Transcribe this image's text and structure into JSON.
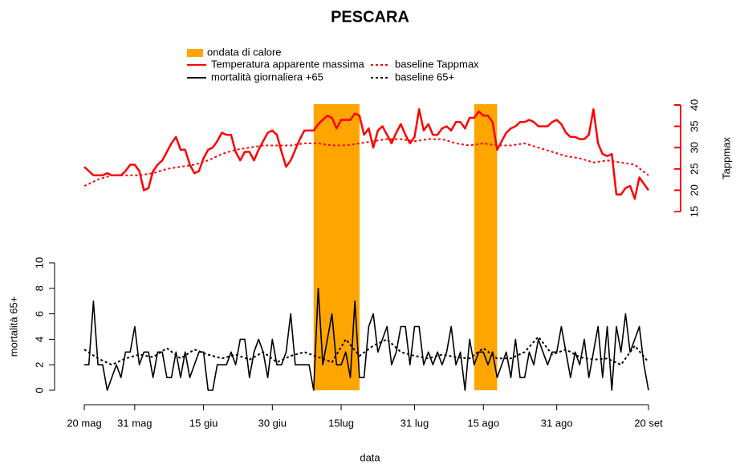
{
  "chart_data": [
    {
      "type": "line",
      "title": "PESCARA",
      "ylabel": "Tappmax",
      "y_axis_side": "right",
      "axis_color": "#ff0000",
      "ylim": [
        15,
        40
      ],
      "yticks": [
        15,
        20,
        25,
        30,
        35,
        40
      ],
      "xlim": [
        0,
        123
      ],
      "heatwaves": {
        "name": "ondata di calore",
        "color": "#ffa500",
        "ranges": [
          [
            50,
            60
          ],
          [
            85,
            90
          ]
        ]
      },
      "x": [
        0,
        1,
        2,
        3,
        4,
        5,
        6,
        7,
        8,
        9,
        10,
        11,
        12,
        13,
        14,
        15,
        16,
        17,
        18,
        19,
        20,
        21,
        22,
        23,
        24,
        25,
        26,
        27,
        28,
        29,
        30,
        31,
        32,
        33,
        34,
        35,
        36,
        37,
        38,
        39,
        40,
        41,
        42,
        43,
        44,
        45,
        46,
        47,
        48,
        49,
        50,
        51,
        52,
        53,
        54,
        55,
        56,
        57,
        58,
        59,
        60,
        61,
        62,
        63,
        64,
        65,
        66,
        67,
        68,
        69,
        70,
        71,
        72,
        73,
        74,
        75,
        76,
        77,
        78,
        79,
        80,
        81,
        82,
        83,
        84,
        85,
        86,
        87,
        88,
        89,
        90,
        91,
        92,
        93,
        94,
        95,
        96,
        97,
        98,
        99,
        100,
        101,
        102,
        103,
        104,
        105,
        106,
        107,
        108,
        109,
        110,
        111,
        112,
        113,
        114,
        115,
        116,
        117,
        118,
        119,
        120,
        121,
        122,
        123
      ],
      "series": [
        {
          "name": "Temperatura apparente massima",
          "color": "#ff0000",
          "linestyle": "solid",
          "values": [
            25.5,
            24.5,
            23.5,
            23.5,
            23.5,
            24,
            23.5,
            23.5,
            23.5,
            24.5,
            26,
            26,
            24.5,
            20,
            20.5,
            24.5,
            26,
            27,
            29,
            31,
            32.5,
            29.5,
            29.5,
            26,
            24,
            24.5,
            27.5,
            29.5,
            30,
            31.5,
            33.5,
            33,
            33,
            29,
            27,
            29,
            29,
            27,
            29.5,
            31.5,
            33.5,
            34,
            33,
            29,
            25.5,
            27,
            29.5,
            32,
            34,
            34,
            34,
            35.5,
            36.5,
            37.5,
            37,
            34.5,
            36.5,
            36.5,
            36.5,
            38,
            37.5,
            33,
            34.5,
            30,
            34,
            35,
            33,
            31,
            33.5,
            35.5,
            33,
            31,
            32.5,
            39,
            34,
            35.5,
            33,
            33,
            34.5,
            35,
            34,
            36,
            36,
            34.5,
            37,
            37,
            38.5,
            37.5,
            37.5,
            36,
            29.5,
            31.5,
            33.5,
            34.5,
            35,
            36,
            36,
            36.5,
            36,
            35,
            35,
            35,
            36,
            36.5,
            35.5,
            33.5,
            32.5,
            32.5,
            32,
            32,
            33,
            39,
            31,
            28.5,
            28,
            28.5,
            19,
            19,
            20.5,
            21,
            18,
            23,
            21.5,
            20
          ]
        },
        {
          "name": "baseline Tappmax",
          "color": "#ff0000",
          "linestyle": "dotted",
          "x": [
            0,
            3,
            6,
            9,
            12,
            15,
            18,
            21,
            24,
            27,
            30,
            33,
            36,
            39,
            42,
            45,
            48,
            51,
            54,
            57,
            60,
            63,
            66,
            69,
            72,
            75,
            78,
            81,
            84,
            87,
            90,
            93,
            96,
            99,
            102,
            105,
            108,
            111,
            114,
            117,
            120,
            123
          ],
          "values": [
            21,
            22.5,
            23.5,
            23.5,
            23.5,
            24,
            25,
            25.5,
            26,
            27,
            28.5,
            29.5,
            30,
            30.5,
            30.5,
            30.5,
            31,
            31,
            30.5,
            30.5,
            31,
            31.5,
            32,
            32,
            31.5,
            32,
            32,
            31,
            30.5,
            31,
            30.5,
            30.5,
            31,
            30,
            29,
            28,
            27.5,
            26.5,
            27,
            26.5,
            26,
            23.5
          ]
        }
      ]
    },
    {
      "type": "line",
      "ylabel": "mortalità 65+",
      "xlabel": "data",
      "y_axis_side": "left",
      "axis_color": "#000000",
      "ylim": [
        0,
        10
      ],
      "yticks": [
        0,
        2,
        4,
        6,
        8,
        10
      ],
      "xlim": [
        0,
        123
      ],
      "xticks": [
        {
          "value": 0,
          "label": "20 mag"
        },
        {
          "value": 11,
          "label": "31 mag"
        },
        {
          "value": 26,
          "label": "15 giu"
        },
        {
          "value": 41,
          "label": "30 giu"
        },
        {
          "value": 56,
          "label": "15lug"
        },
        {
          "value": 72,
          "label": "31 lug"
        },
        {
          "value": 87,
          "label": "15 ago"
        },
        {
          "value": 103,
          "label": "31 ago"
        },
        {
          "value": 123,
          "label": "20 set"
        }
      ],
      "x": [
        0,
        1,
        2,
        3,
        4,
        5,
        6,
        7,
        8,
        9,
        10,
        11,
        12,
        13,
        14,
        15,
        16,
        17,
        18,
        19,
        20,
        21,
        22,
        23,
        24,
        25,
        26,
        27,
        28,
        29,
        30,
        31,
        32,
        33,
        34,
        35,
        36,
        37,
        38,
        39,
        40,
        41,
        42,
        43,
        44,
        45,
        46,
        47,
        48,
        49,
        50,
        51,
        52,
        53,
        54,
        55,
        56,
        57,
        58,
        59,
        60,
        61,
        62,
        63,
        64,
        65,
        66,
        67,
        68,
        69,
        70,
        71,
        72,
        73,
        74,
        75,
        76,
        77,
        78,
        79,
        80,
        81,
        82,
        83,
        84,
        85,
        86,
        87,
        88,
        89,
        90,
        91,
        92,
        93,
        94,
        95,
        96,
        97,
        98,
        99,
        100,
        101,
        102,
        103,
        104,
        105,
        106,
        107,
        108,
        109,
        110,
        111,
        112,
        113,
        114,
        115,
        116,
        117,
        118,
        119,
        120,
        121,
        122,
        123
      ],
      "series": [
        {
          "name": "mortalità giornaliera +65",
          "color": "#000000",
          "linestyle": "solid",
          "values": [
            2,
            2,
            7,
            2,
            2,
            0,
            1,
            2,
            1,
            3,
            3,
            5,
            2,
            3,
            3,
            1,
            3,
            3,
            1,
            1,
            3,
            1,
            3,
            1,
            2,
            3,
            3,
            0,
            0,
            2,
            2,
            2,
            3,
            2,
            4,
            4,
            1,
            3,
            4,
            3,
            1,
            4,
            2,
            2,
            3,
            6,
            2,
            2,
            2,
            2,
            0,
            8,
            2,
            4,
            6,
            2,
            2,
            3,
            1,
            7,
            1,
            1,
            5,
            6,
            3,
            4,
            5,
            2,
            3,
            5,
            5,
            2,
            5,
            5,
            2,
            3,
            2,
            3,
            2,
            3,
            5,
            2,
            3,
            0,
            4,
            2,
            3,
            3,
            2,
            3,
            1,
            2,
            3,
            1,
            4,
            1,
            1,
            3,
            2,
            4,
            3,
            2,
            3,
            3,
            5,
            3,
            1,
            3,
            2,
            4,
            1,
            3,
            5,
            1,
            5,
            0,
            5,
            3,
            6,
            3,
            4,
            5,
            2,
            0
          ]
        },
        {
          "name": "baseline 65+",
          "color": "#000000",
          "linestyle": "dotted",
          "x": [
            0,
            3,
            6,
            9,
            12,
            15,
            18,
            21,
            24,
            27,
            30,
            33,
            36,
            39,
            42,
            45,
            48,
            51,
            54,
            57,
            60,
            63,
            66,
            69,
            72,
            75,
            78,
            81,
            84,
            87,
            90,
            93,
            96,
            99,
            102,
            105,
            108,
            111,
            114,
            117,
            120,
            123
          ],
          "values": [
            3.2,
            2.5,
            2,
            2.5,
            2.8,
            2.6,
            3.3,
            2.5,
            3.2,
            2.8,
            2.5,
            2.8,
            2.4,
            3,
            2.2,
            2.7,
            3,
            2.6,
            2.2,
            4,
            2.7,
            3.5,
            4,
            3,
            2.7,
            2.5,
            2.8,
            2.6,
            2.5,
            3.3,
            2.5,
            2.5,
            3,
            4.2,
            2.8,
            3.2,
            2.6,
            2.4,
            2.5,
            2,
            3.5,
            2.2
          ]
        }
      ]
    }
  ]
}
